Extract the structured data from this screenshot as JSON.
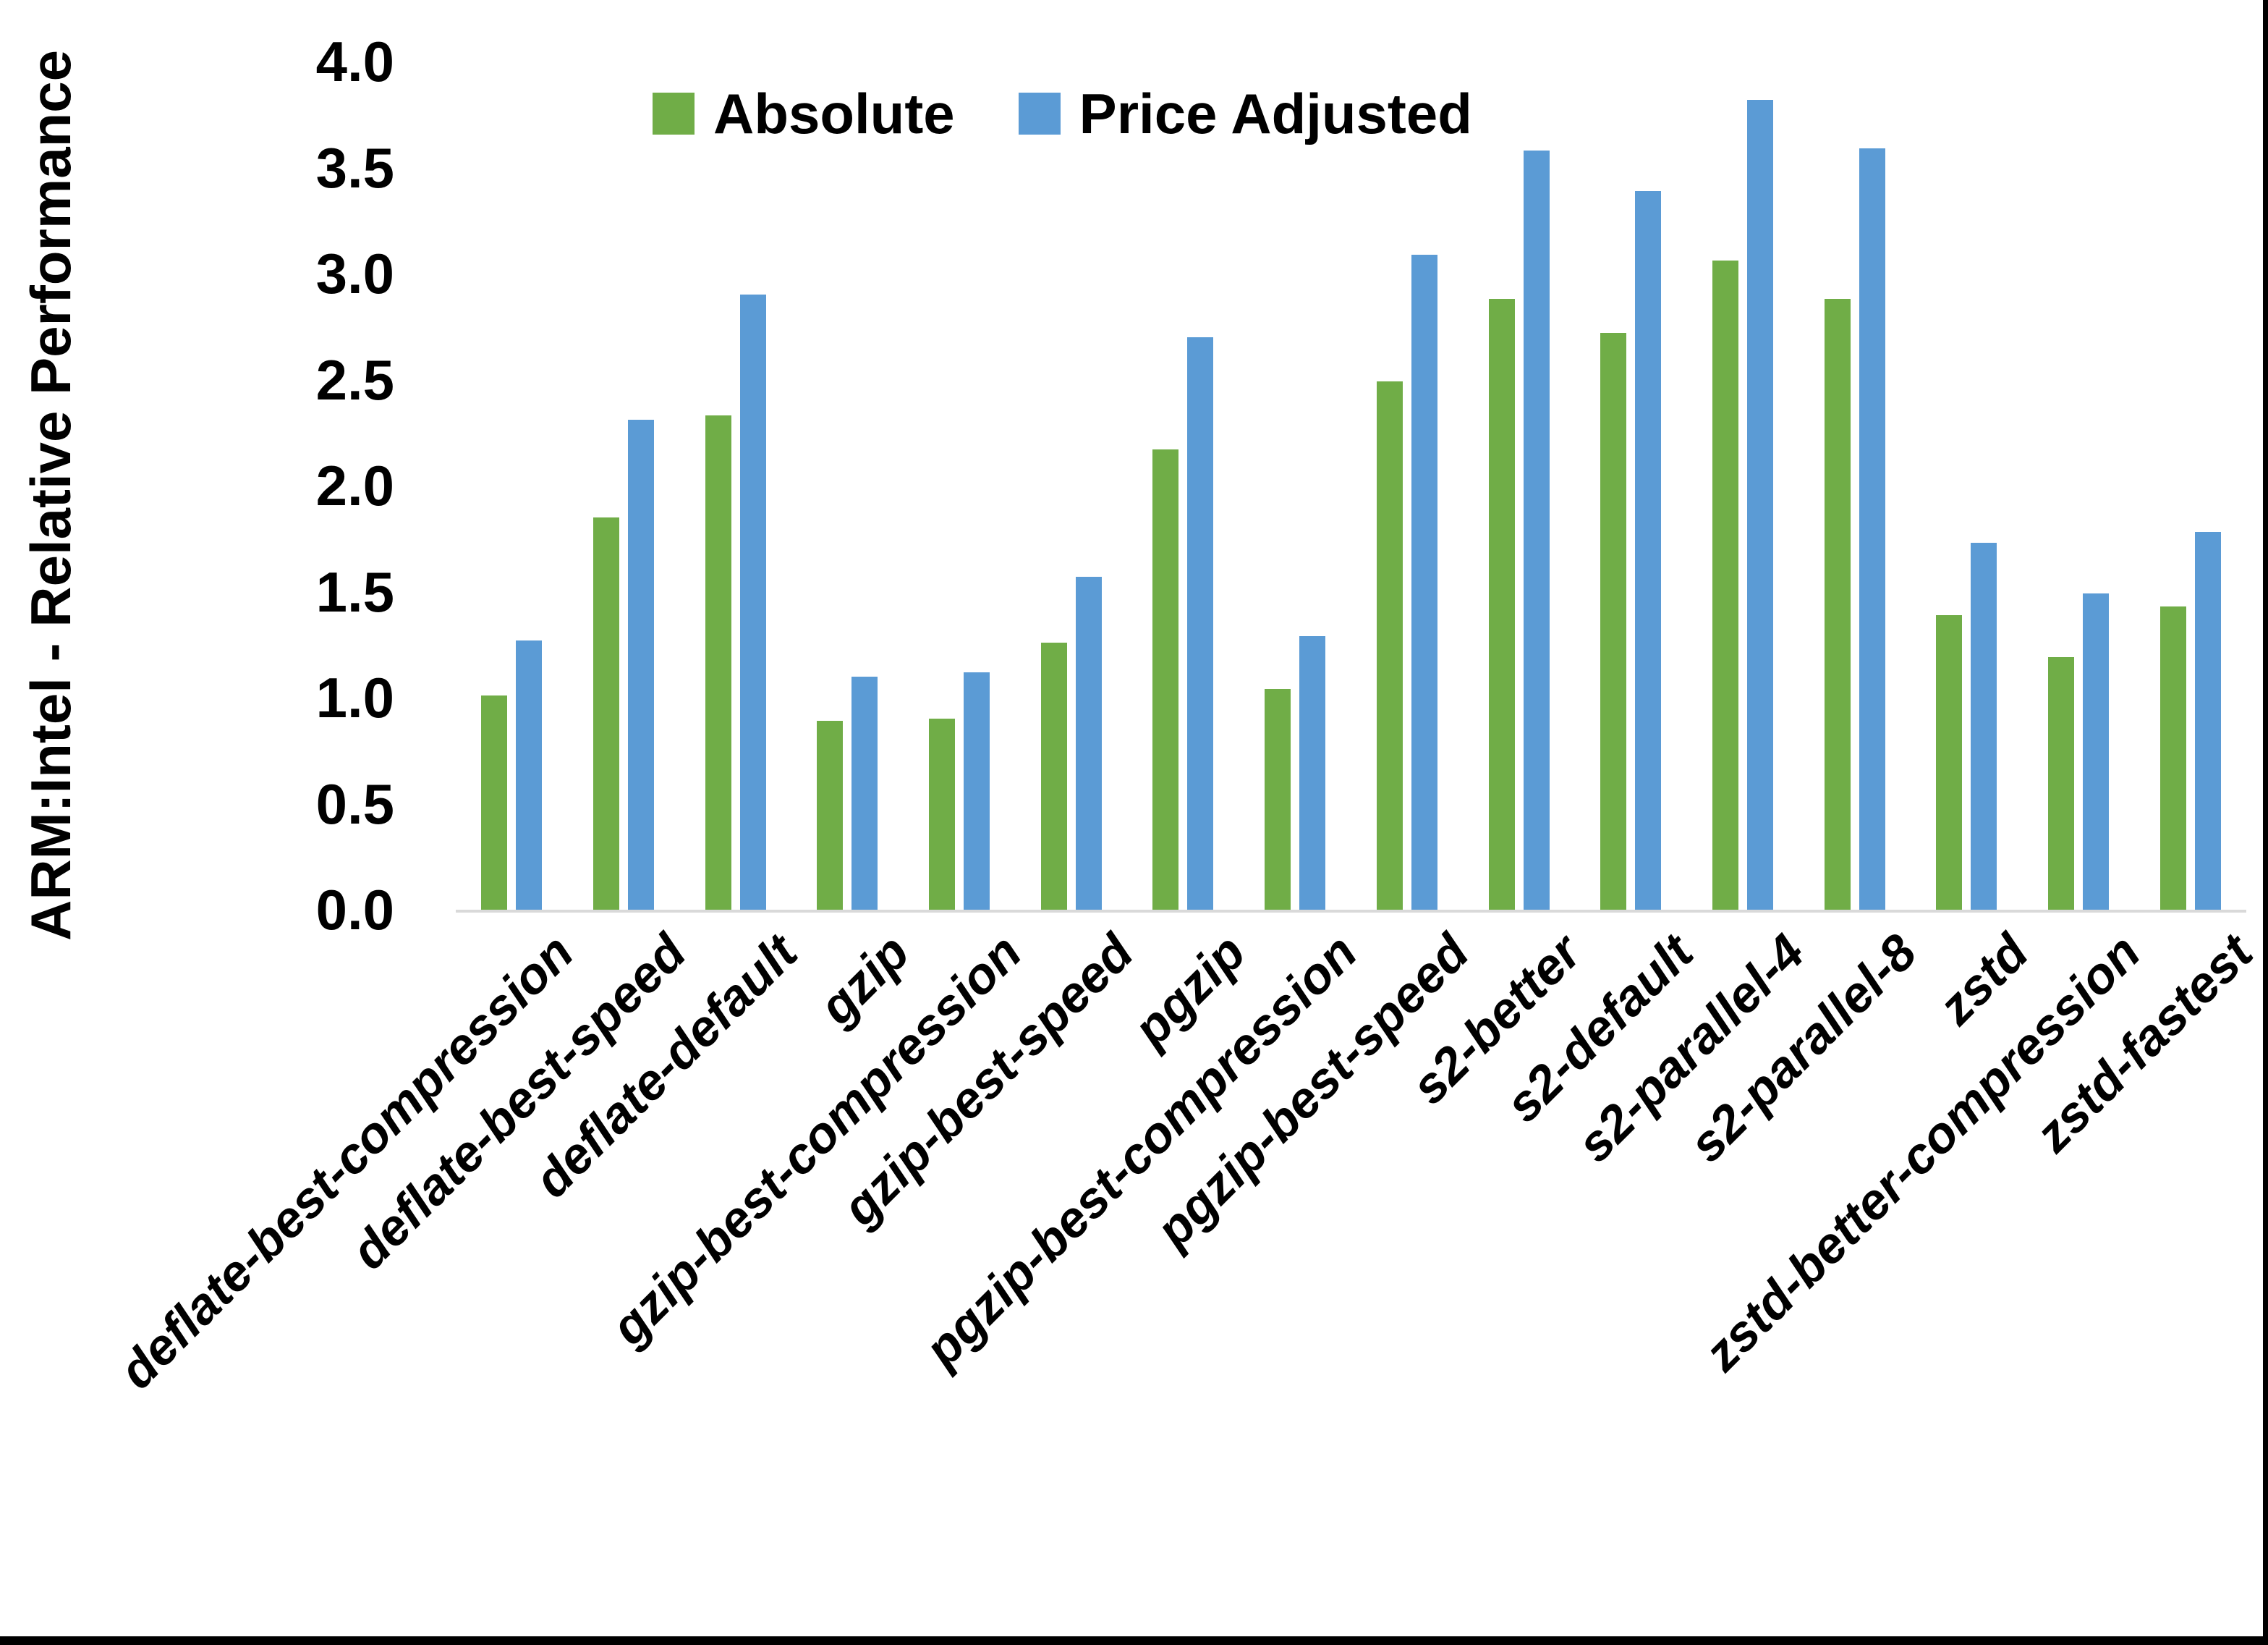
{
  "chart_data": {
    "type": "bar",
    "title": "",
    "xlabel": "",
    "ylabel": "ARM:Intel - Relative Performance",
    "ylim": [
      0.0,
      4.0
    ],
    "ytick_step": 0.5,
    "ytick_labels": [
      "0.0",
      "0.5",
      "1.0",
      "1.5",
      "2.0",
      "2.5",
      "3.0",
      "3.5",
      "4.0"
    ],
    "grid": false,
    "legend_position": "top-center",
    "categories": [
      "deflate-best-compression",
      "deflate-best-speed",
      "deflate-default",
      "gzip",
      "gzip-best-compression",
      "gzip-best-speed",
      "pgzip",
      "pgzip-best-compression",
      "pgzip-best-speed",
      "s2-better",
      "s2-default",
      "s2-parallel-4",
      "s2-parallel-8",
      "zstd",
      "zstd-better-compression",
      "zstd-fastest"
    ],
    "series": [
      {
        "name": "Absolute",
        "color": "#70AD47",
        "values": [
          1.01,
          1.85,
          2.33,
          0.89,
          0.9,
          1.26,
          2.17,
          1.04,
          2.49,
          2.88,
          2.72,
          3.06,
          2.88,
          1.39,
          1.19,
          1.43
        ]
      },
      {
        "name": "Price Adjusted",
        "color": "#5B9BD5",
        "values": [
          1.27,
          2.31,
          2.9,
          1.1,
          1.12,
          1.57,
          2.7,
          1.29,
          3.09,
          3.58,
          3.39,
          3.82,
          3.59,
          1.73,
          1.49,
          1.78
        ]
      }
    ]
  },
  "colors": {
    "absolute": "#70AD47",
    "price_adjusted": "#5B9BD5",
    "axis_line": "#D9D9D9",
    "frame_border": "#000000",
    "background": "#FFFFFF",
    "text": "#000000"
  }
}
